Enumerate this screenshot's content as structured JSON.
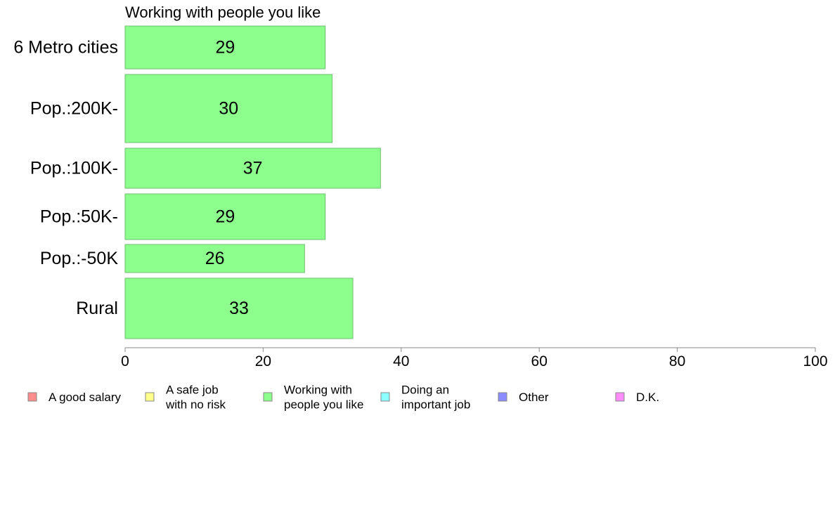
{
  "chart_data": {
    "type": "bar",
    "orientation": "horizontal",
    "title": "Working with people you like",
    "categories": [
      "6 Metro cities",
      "Pop.:200K-",
      "Pop.:100K-",
      "Pop.:50K-",
      "Pop.:-50K",
      "Rural"
    ],
    "values": [
      29,
      30,
      37,
      29,
      26,
      33
    ],
    "value_labels": [
      "29",
      "30",
      "37",
      "29",
      "26",
      "33"
    ],
    "xlim": [
      0,
      100
    ],
    "x_ticks": [
      0,
      20,
      40,
      60,
      80,
      100
    ],
    "x_tick_labels": [
      "0",
      "20",
      "40",
      "60",
      "80",
      "100"
    ],
    "grid": false,
    "bar_color": "#8cff8c",
    "legend_position": "bottom",
    "legend": [
      {
        "lines": [
          "A good salary"
        ],
        "color": "#ff8c8c"
      },
      {
        "lines": [
          "A safe job",
          "with no risk"
        ],
        "color": "#ffff8c"
      },
      {
        "lines": [
          "Working with",
          "people you like"
        ],
        "color": "#8cff8c"
      },
      {
        "lines": [
          "Doing an",
          "important job"
        ],
        "color": "#8cffff"
      },
      {
        "lines": [
          "Other"
        ],
        "color": "#8c8cff"
      },
      {
        "lines": [
          "D.K."
        ],
        "color": "#ff8cff"
      }
    ]
  }
}
